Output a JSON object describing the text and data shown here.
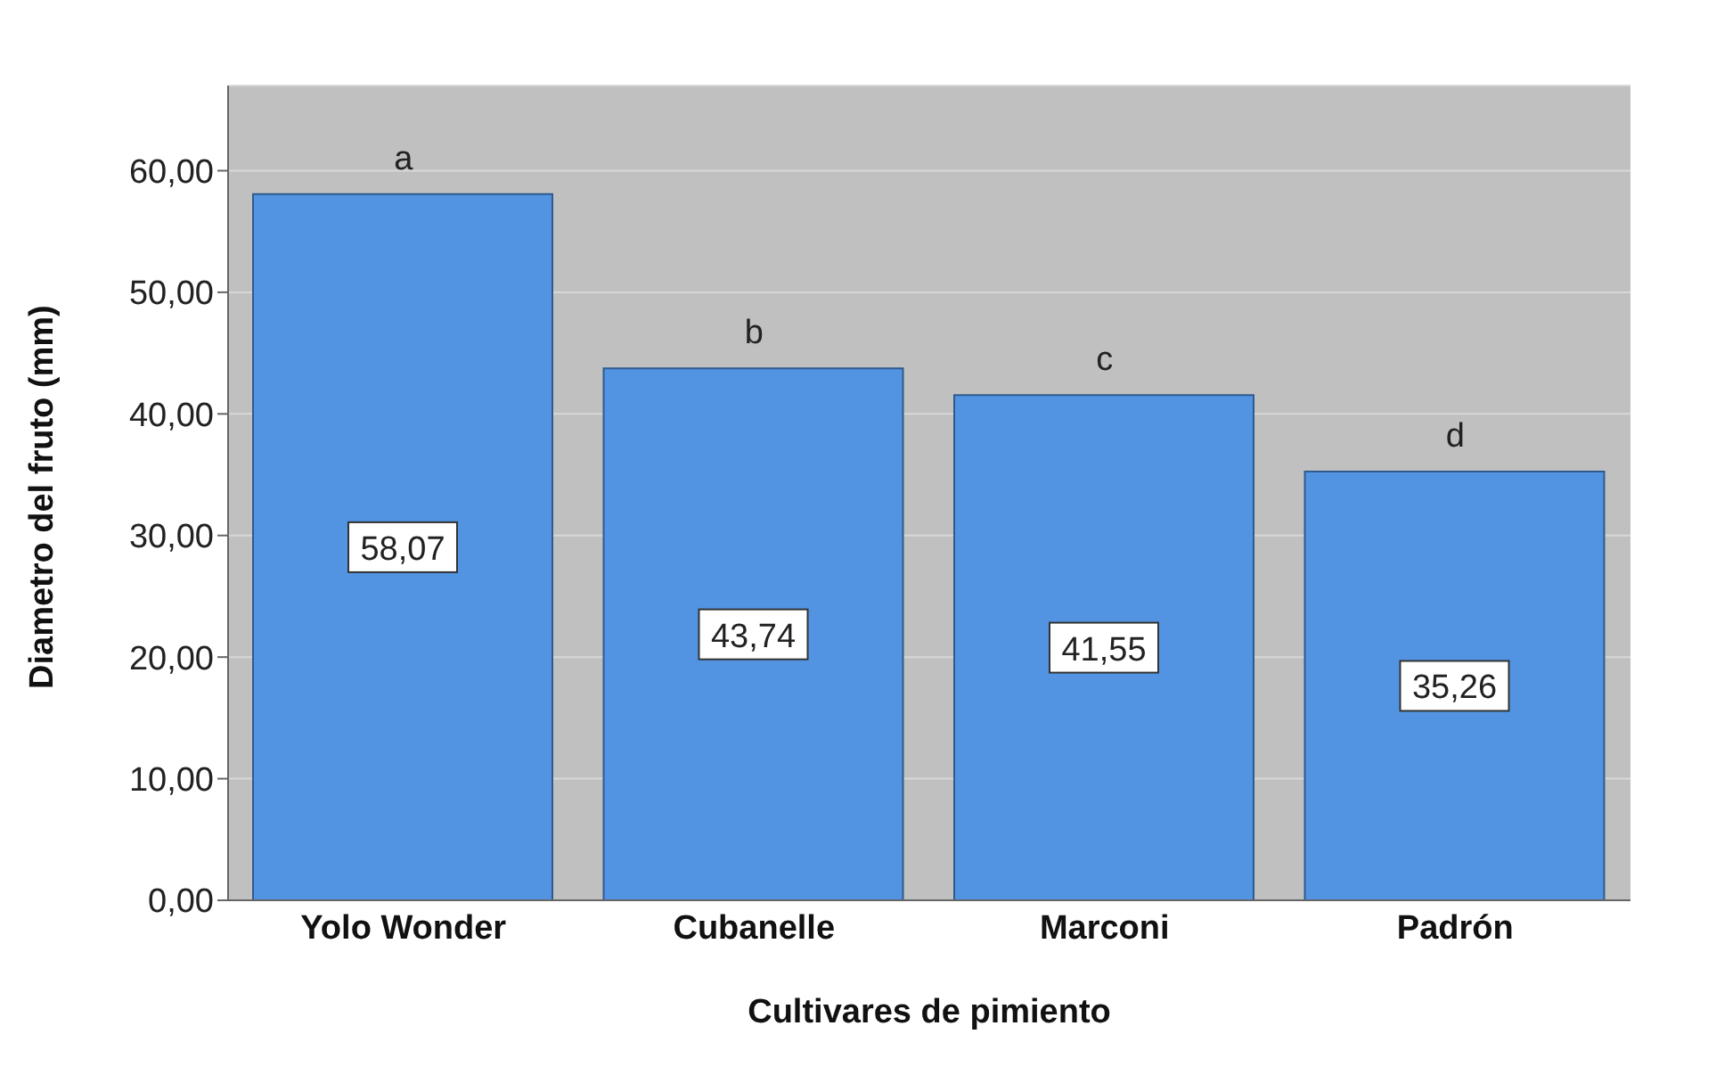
{
  "chart_data": {
    "type": "bar",
    "xlabel": "Cultivares de pimiento",
    "ylabel": "Diametro del fruto (mm)",
    "categories": [
      "Yolo Wonder",
      "Cubanelle",
      "Marconi",
      "Padrón"
    ],
    "values": [
      58.07,
      43.74,
      41.55,
      35.26
    ],
    "value_labels": [
      "58,07",
      "43,74",
      "41,55",
      "35,26"
    ],
    "color": "#5294e2",
    "ylim": [
      0,
      67
    ],
    "yticks": [
      {
        "value": 0,
        "label": "0,00"
      },
      {
        "value": 10,
        "label": "10,00"
      },
      {
        "value": 20,
        "label": "20,00"
      },
      {
        "value": 30,
        "label": "30,00"
      },
      {
        "value": 40,
        "label": "40,00"
      },
      {
        "value": 50,
        "label": "50,00"
      },
      {
        "value": 60,
        "label": "60,00"
      }
    ],
    "grid": "y",
    "annotations": [
      {
        "text": "a",
        "x": "Yolo Wonder",
        "y": 58.07
      },
      {
        "text": "b",
        "x": "Cubanelle",
        "y": 43.74
      },
      {
        "text": "c",
        "x": "Marconi",
        "y": 41.55
      },
      {
        "text": "d",
        "x": "Padrón",
        "y": 35.26
      }
    ]
  }
}
